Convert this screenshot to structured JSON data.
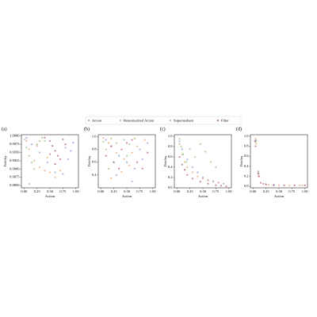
{
  "chart_data": [
    {
      "type": "scatter",
      "panel_label": "(a)",
      "xlabel": "Action",
      "ylabel": "Fidelity",
      "xlim": [
        -0.05,
        1.05
      ],
      "ylim": [
        0.9843,
        1.0004
      ],
      "xticks": [
        {
          "value": 0,
          "label": "0.00"
        },
        {
          "value": 0.25,
          "label": "0.25"
        },
        {
          "value": 0.5,
          "label": "0.50"
        },
        {
          "value": 0.75,
          "label": "0.75"
        },
        {
          "value": 1,
          "label": "1.00"
        }
      ],
      "yticks": [
        {
          "value": 0.985,
          "label": "0.9850"
        },
        {
          "value": 0.9875,
          "label": "0.9875"
        },
        {
          "value": 0.99,
          "label": "0.9900"
        },
        {
          "value": 0.9925,
          "label": "0.9925"
        },
        {
          "value": 0.995,
          "label": "0.9950"
        },
        {
          "value": 0.9975,
          "label": "0.9975"
        },
        {
          "value": 1,
          "label": "1.0000"
        }
      ],
      "series": [
        {
          "name": "Action",
          "color": "#7b8fd1",
          "x": [
            0.05,
            0.15,
            0.3,
            0.45,
            0.6,
            0.75,
            0.85,
            0.95,
            0.9,
            0.8
          ],
          "y": [
            0.9995,
            0.9975,
            0.995,
            0.992,
            0.989,
            0.9885,
            0.993,
            0.998,
            0.9955,
            0.9965
          ]
        },
        {
          "name": "Renormalized Action",
          "color": "#e39a66",
          "x": [
            0.05,
            0.1,
            0.2,
            0.3,
            0.4,
            0.5,
            0.6,
            0.7,
            0.25,
            0.45
          ],
          "y": [
            0.9985,
            0.996,
            0.9925,
            0.9905,
            0.9895,
            0.989,
            0.9875,
            0.9895,
            0.997,
            0.9935
          ]
        },
        {
          "name": "Supermediant",
          "color": "#7fbf6a",
          "x": [
            0.02,
            0.05,
            0.1,
            0.15,
            0.2,
            0.3,
            0.35,
            0.1,
            0.25,
            0.4
          ],
          "y": [
            0.999,
            0.9965,
            0.994,
            0.992,
            0.99,
            0.9985,
            0.9995,
            0.9855,
            0.9975,
            0.9985
          ]
        },
        {
          "name": "Filter",
          "color": "#a8456e",
          "x": [
            0.4,
            0.5,
            0.55,
            0.6,
            0.65,
            0.7,
            0.75,
            0.8,
            0.5,
            0.6
          ],
          "y": [
            0.9995,
            0.9985,
            0.997,
            0.9955,
            0.994,
            0.993,
            0.999,
            0.9975,
            0.9945,
            0.9915
          ]
        }
      ]
    },
    {
      "type": "scatter",
      "panel_label": "(b)",
      "xlabel": "Action",
      "ylabel": "Fidelity",
      "xlim": [
        -0.05,
        1.05
      ],
      "ylim": [
        0.2,
        1.03
      ],
      "xticks": [
        {
          "value": 0,
          "label": "0.00"
        },
        {
          "value": 0.25,
          "label": "0.25"
        },
        {
          "value": 0.5,
          "label": "0.50"
        },
        {
          "value": 0.75,
          "label": "0.75"
        },
        {
          "value": 1,
          "label": "1.00"
        }
      ],
      "yticks": [
        0.4,
        0.6,
        0.8,
        {
          "value": 1,
          "label": "1.0"
        }
      ],
      "series": [
        {
          "color": "#7b8fd1",
          "x": [
            0.1,
            0.2,
            0.35,
            0.5,
            0.65,
            0.8,
            0.9,
            0.3,
            0.6,
            0.75
          ],
          "y": [
            0.95,
            0.85,
            0.7,
            0.6,
            0.5,
            0.65,
            0.9,
            0.4,
            0.3,
            0.8
          ]
        },
        {
          "color": "#e39a66",
          "x": [
            0.05,
            0.15,
            0.3,
            0.45,
            0.55,
            0.7,
            0.85,
            0.2,
            0.4,
            0.6
          ],
          "y": [
            0.98,
            0.9,
            0.75,
            0.65,
            0.55,
            0.85,
            0.95,
            0.35,
            0.45,
            0.75
          ]
        },
        {
          "color": "#7fbf6a",
          "x": [
            0.05,
            0.1,
            0.2,
            0.3,
            0.45,
            0.55,
            0.65,
            0.25,
            0.5,
            0.15
          ],
          "y": [
            0.92,
            0.8,
            0.97,
            0.9,
            0.95,
            0.88,
            0.97,
            0.6,
            0.7,
            0.5
          ]
        },
        {
          "color": "#a8456e",
          "x": [
            0.1,
            0.25,
            0.4,
            0.5,
            0.7,
            0.8,
            0.35,
            0.6,
            0.9,
            0.2
          ],
          "y": [
            0.7,
            0.6,
            0.8,
            0.9,
            0.6,
            0.5,
            0.5,
            0.95,
            0.75,
            0.85
          ]
        }
      ]
    },
    {
      "type": "scatter",
      "panel_label": "(c)",
      "xlabel": "Action",
      "ylabel": "Fidelity",
      "xlim": [
        -0.05,
        1.05
      ],
      "ylim": [
        0,
        1.03
      ],
      "xticks": [
        {
          "value": 0,
          "label": "0.00"
        },
        {
          "value": 0.25,
          "label": "0.25"
        },
        {
          "value": 0.5,
          "label": "0.50"
        },
        {
          "value": 0.75,
          "label": "0.75"
        },
        {
          "value": 1,
          "label": "1.00"
        }
      ],
      "yticks": [
        {
          "value": 0,
          "label": "0.0"
        },
        0.2,
        0.4,
        0.6,
        0.8,
        {
          "value": 1,
          "label": "1.0"
        }
      ],
      "series": [
        {
          "color": "#7b8fd1",
          "x": [
            0.05,
            0.1,
            0.2,
            0.3,
            0.4,
            0.5,
            0.6,
            0.7,
            0.8,
            0.9
          ],
          "y": [
            0.9,
            0.75,
            0.55,
            0.4,
            0.3,
            0.2,
            0.15,
            0.12,
            0.1,
            0.08
          ]
        },
        {
          "color": "#e39a66",
          "x": [
            0.05,
            0.1,
            0.15,
            0.2,
            0.3,
            0.4,
            0.5,
            0.6,
            0.7,
            0.8
          ],
          "y": [
            0.85,
            0.65,
            0.5,
            0.4,
            0.3,
            0.22,
            0.18,
            0.15,
            0.13,
            0.1
          ]
        },
        {
          "color": "#7fbf6a",
          "x": [
            0.05,
            0.08,
            0.12,
            0.18,
            0.25,
            0.35,
            0.45,
            0.55,
            0.65,
            0.75
          ],
          "y": [
            0.95,
            0.8,
            0.65,
            0.5,
            0.75,
            0.6,
            0.85,
            0.7,
            0.5,
            0.4
          ]
        },
        {
          "color": "#a8456e",
          "x": [
            0.05,
            0.1,
            0.15,
            0.2,
            0.3,
            0.45,
            0.6,
            0.75,
            0.85,
            0.95
          ],
          "y": [
            0.6,
            0.45,
            0.35,
            0.25,
            0.18,
            0.12,
            0.08,
            0.05,
            0.04,
            0.03
          ]
        }
      ]
    },
    {
      "type": "scatter",
      "panel_label": "(d)",
      "xlabel": "Action",
      "ylabel": "Fidelity",
      "xlim": [
        -0.05,
        1.05
      ],
      "ylim": [
        -0.03,
        1.03
      ],
      "xticks": [
        {
          "value": 0,
          "label": "0.00"
        },
        {
          "value": 0.25,
          "label": "0.25"
        },
        {
          "value": 0.5,
          "label": "0.50"
        },
        {
          "value": 0.75,
          "label": "0.75"
        },
        {
          "value": 1,
          "label": "1.00"
        }
      ],
      "yticks": [
        {
          "value": 0,
          "label": "0.0"
        },
        0.2,
        0.4,
        0.6,
        0.8,
        {
          "value": 1,
          "label": "1.0"
        }
      ],
      "series": [
        {
          "color": "#7b8fd1",
          "x": [
            0.05,
            0.1,
            0.2,
            0.4
          ],
          "y": [
            0.92,
            0.28,
            0.05,
            0.02
          ]
        },
        {
          "color": "#e39a66",
          "x": [
            0.05,
            0.06,
            0.1,
            0.12,
            0.2,
            0.3,
            0.5,
            0.7,
            0.9,
            0.95
          ],
          "y": [
            0.95,
            0.85,
            0.3,
            0.2,
            0.05,
            0.03,
            0.02,
            0.02,
            0.02,
            0.02
          ]
        },
        {
          "color": "#7fbf6a",
          "x": [
            0.06,
            0.11,
            0.25
          ],
          "y": [
            0.9,
            0.25,
            0.04
          ]
        },
        {
          "color": "#a8456e",
          "x": [
            0.04,
            0.05,
            0.1,
            0.11,
            0.15,
            0.25,
            0.4,
            0.6,
            0.8,
            1.0
          ],
          "y": [
            0.9,
            0.8,
            0.25,
            0.2,
            0.07,
            0.04,
            0.03,
            0.02,
            0.02,
            0.02
          ]
        }
      ]
    }
  ]
}
